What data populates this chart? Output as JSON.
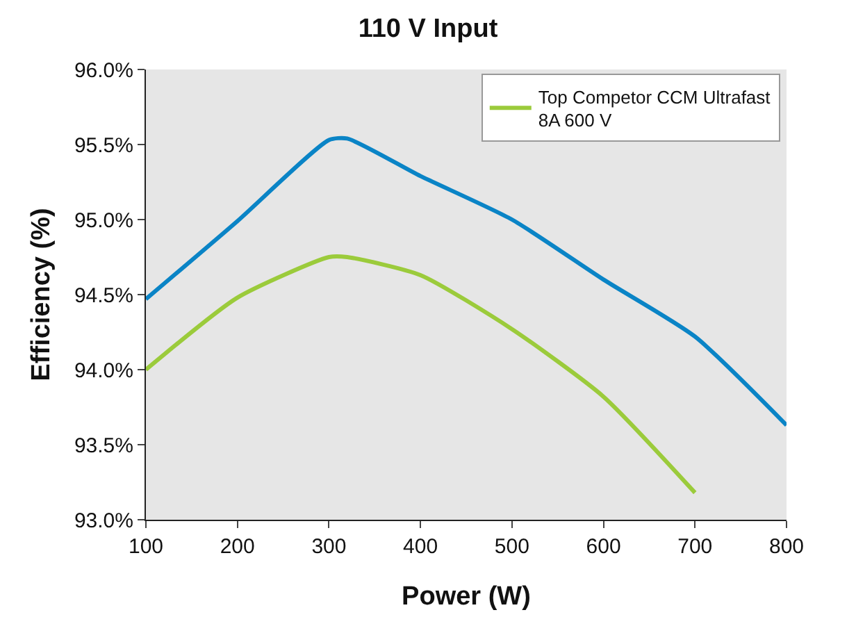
{
  "chart_data": {
    "type": "line",
    "title": "110 V Input",
    "xlabel": "Power (W)",
    "ylabel": "Efficiency (%)",
    "x": [
      100,
      200,
      300,
      320,
      400,
      500,
      600,
      700,
      800
    ],
    "series": [
      {
        "color": "#0a84c6",
        "values": [
          94.47,
          94.99,
          95.53,
          95.54,
          95.29,
          95.0,
          94.6,
          94.22,
          93.63
        ]
      },
      {
        "name": "Top Competor CCM Ultrafast 8A 600 V",
        "color": "#9bcb3b",
        "values": [
          94.0,
          94.48,
          94.75,
          94.75,
          94.63,
          94.27,
          93.82,
          93.18,
          null
        ]
      }
    ],
    "xlim": [
      100,
      800
    ],
    "xticks": [
      100,
      200,
      300,
      400,
      500,
      600,
      700,
      800
    ],
    "ylim": [
      93.0,
      96.0
    ],
    "yticks": [
      {
        "value": 93.0,
        "label": "93.0%"
      },
      {
        "value": 93.5,
        "label": "93.5%"
      },
      {
        "value": 94.0,
        "label": "94.0%"
      },
      {
        "value": 94.5,
        "label": "94.5%"
      },
      {
        "value": 95.0,
        "label": "95.0%"
      },
      {
        "value": 95.5,
        "label": "95.5%"
      },
      {
        "value": 96.0,
        "label": "96.0%"
      }
    ],
    "grid": false,
    "legend": "top right",
    "marker": "none",
    "line_style": "solid"
  }
}
